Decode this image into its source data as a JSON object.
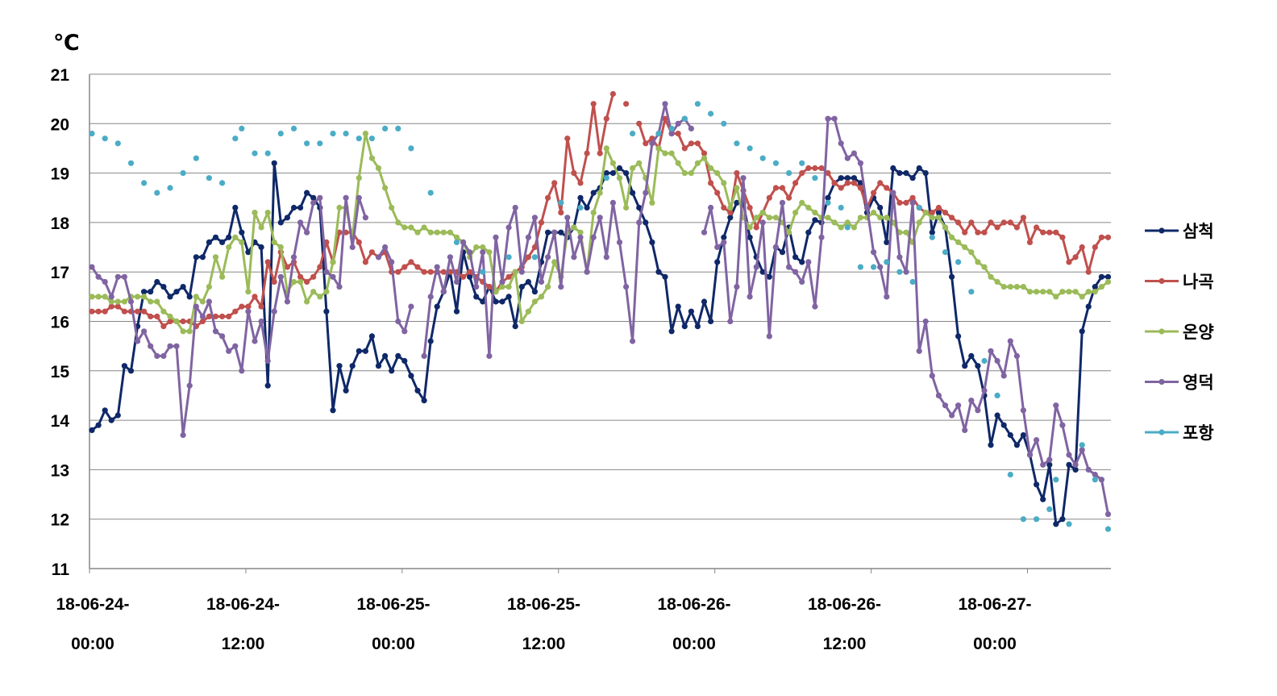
{
  "chart_data": {
    "type": "line",
    "title": "",
    "unit_label": "℃",
    "xlabel": "",
    "ylabel": "℃",
    "ylim": [
      11,
      21
    ],
    "yticks": [
      "11",
      "12",
      "13",
      "14",
      "15",
      "16",
      "17",
      "18",
      "19",
      "20",
      "21"
    ],
    "grid": true,
    "legend_position": "right",
    "x_step_hours": 0.5,
    "x_start": "18-06-24 00:00",
    "x_tick_labels": [
      [
        "18-06-24-",
        "00:00"
      ],
      [
        "18-06-24-",
        "12:00"
      ],
      [
        "18-06-25-",
        "00:00"
      ],
      [
        "18-06-25-",
        "12:00"
      ],
      [
        "18-06-26-",
        "00:00"
      ],
      [
        "18-06-26-",
        "12:00"
      ],
      [
        "18-06-27-",
        "00:00"
      ]
    ],
    "series": [
      {
        "name": "삼척",
        "color": "#0f2868",
        "line": true,
        "values": [
          13.8,
          13.9,
          14.2,
          14.0,
          14.1,
          15.1,
          15.0,
          15.9,
          16.6,
          16.6,
          16.8,
          16.7,
          16.5,
          16.6,
          16.7,
          16.5,
          17.3,
          17.3,
          17.6,
          17.7,
          17.6,
          17.7,
          18.3,
          17.8,
          17.4,
          17.6,
          17.5,
          14.7,
          19.2,
          18.0,
          18.1,
          18.3,
          18.3,
          18.6,
          18.5,
          18.3,
          16.2,
          14.2,
          15.1,
          14.6,
          15.1,
          15.4,
          15.4,
          15.7,
          15.1,
          15.3,
          15.0,
          15.3,
          15.2,
          14.9,
          14.6,
          14.4,
          15.6,
          16.3,
          16.6,
          17.0,
          16.2,
          17.4,
          16.9,
          16.5,
          16.4,
          16.7,
          16.4,
          16.4,
          16.5,
          15.9,
          16.7,
          16.8,
          16.6,
          17.2,
          17.8,
          17.8,
          17.8,
          17.7,
          17.9,
          18.5,
          18.3,
          18.6,
          18.7,
          19.0,
          19.0,
          19.1,
          19.0,
          18.6,
          18.3,
          18.0,
          17.6,
          17.0,
          16.9,
          15.8,
          16.3,
          15.9,
          16.2,
          15.9,
          16.4,
          16.0,
          17.2,
          17.7,
          18.1,
          18.4,
          18.4,
          17.7,
          17.3,
          17.0,
          16.9,
          17.5,
          17.4,
          17.9,
          17.3,
          17.2,
          17.8,
          18.05,
          18.0,
          18.5,
          18.8,
          18.9,
          18.9,
          18.9,
          18.8,
          18.2,
          18.5,
          18.3,
          17.6,
          19.1,
          19.0,
          19.0,
          18.9,
          19.1,
          19.0,
          17.8,
          18.2,
          17.9,
          16.9,
          15.7,
          15.1,
          15.3,
          15.1,
          14.5,
          13.5,
          14.1,
          13.9,
          13.7,
          13.5,
          13.7,
          13.3,
          12.7,
          12.4,
          13.1,
          11.9,
          12.0,
          13.1,
          13.0,
          15.8,
          16.3,
          16.7,
          16.9,
          16.9
        ]
      },
      {
        "name": "나곡",
        "color": "#c0504d",
        "line": true,
        "values": [
          16.2,
          16.2,
          16.2,
          16.3,
          16.3,
          16.2,
          16.2,
          16.2,
          16.2,
          16.1,
          16.1,
          15.9,
          16.0,
          16.0,
          16.0,
          16.0,
          15.9,
          16.0,
          16.1,
          16.1,
          16.1,
          16.1,
          16.2,
          16.3,
          16.3,
          16.5,
          16.3,
          17.2,
          16.8,
          17.4,
          17.1,
          17.2,
          16.9,
          16.8,
          16.9,
          17.1,
          17.6,
          17.2,
          17.8,
          17.8,
          17.8,
          17.6,
          17.2,
          17.4,
          17.3,
          17.4,
          17.0,
          17.0,
          17.1,
          17.2,
          17.1,
          17.0,
          17.0,
          17.0,
          17.0,
          17.0,
          17.0,
          16.9,
          17.0,
          16.9,
          16.8,
          16.7,
          16.6,
          16.8,
          16.9,
          17.0,
          17.1,
          17.3,
          17.5,
          18.0,
          18.5,
          18.8,
          18.2,
          19.7,
          19.0,
          18.8,
          19.4,
          20.4,
          19.4,
          20.1,
          20.6,
          null,
          20.4,
          null,
          20.0,
          19.6,
          19.7,
          19.5,
          20.1,
          19.8,
          19.8,
          19.5,
          19.6,
          19.6,
          19.4,
          18.8,
          18.6,
          18.3,
          18.2,
          19.0,
          18.65,
          18.3,
          17.9,
          18.2,
          18.5,
          18.7,
          18.7,
          18.5,
          18.8,
          19.0,
          19.1,
          19.1,
          19.1,
          19.0,
          18.8,
          18.7,
          18.8,
          18.8,
          18.7,
          18.3,
          18.6,
          18.8,
          18.7,
          18.6,
          18.4,
          18.4,
          18.5,
          18.3,
          18.2,
          18.2,
          18.3,
          18.2,
          18.1,
          18.0,
          17.8,
          18.0,
          17.8,
          17.8,
          18.0,
          17.9,
          18.0,
          18.0,
          17.9,
          18.1,
          17.6,
          17.9,
          17.8,
          17.8,
          17.8,
          17.7,
          17.2,
          17.3,
          17.5,
          17.0,
          17.5,
          17.7,
          17.7
        ]
      },
      {
        "name": "온양",
        "color": "#9bbb59",
        "line": true,
        "values": [
          16.5,
          16.5,
          16.5,
          16.4,
          16.4,
          16.4,
          16.5,
          16.5,
          16.5,
          16.4,
          16.4,
          16.2,
          16.1,
          16.0,
          15.8,
          15.8,
          16.5,
          16.4,
          16.7,
          17.3,
          16.9,
          17.5,
          17.7,
          17.6,
          16.6,
          18.2,
          17.9,
          18.2,
          17.6,
          17.5,
          16.6,
          16.8,
          16.8,
          16.4,
          16.6,
          16.5,
          16.6,
          17.2,
          18.3,
          18.3,
          17.7,
          18.9,
          19.8,
          19.3,
          19.1,
          18.7,
          18.3,
          18.0,
          17.9,
          17.9,
          17.8,
          17.9,
          17.8,
          17.8,
          17.8,
          17.8,
          17.7,
          17.6,
          17.3,
          17.5,
          17.5,
          17.4,
          16.6,
          16.7,
          16.7,
          17.0,
          16.0,
          16.2,
          16.4,
          16.5,
          16.7,
          17.2,
          16.9,
          17.8,
          17.9,
          17.8,
          17.0,
          18.2,
          18.6,
          19.5,
          19.2,
          18.9,
          18.3,
          19.1,
          19.2,
          18.9,
          18.4,
          19.5,
          19.4,
          19.4,
          19.2,
          19.0,
          19.0,
          19.2,
          19.3,
          19.1,
          19.0,
          18.8,
          18.3,
          18.7,
          18.1,
          17.9,
          18.1,
          18.2,
          18.1,
          18.1,
          18.0,
          17.8,
          18.2,
          18.4,
          18.3,
          18.2,
          18.1,
          18.1,
          18.0,
          17.9,
          18.0,
          17.9,
          18.1,
          18.1,
          18.2,
          18.1,
          18.1,
          18.0,
          17.8,
          17.8,
          17.6,
          18.0,
          18.2,
          18.1,
          18.1,
          17.9,
          17.7,
          17.6,
          17.5,
          17.4,
          17.2,
          17.1,
          16.9,
          16.8,
          16.7,
          16.7,
          16.7,
          16.7,
          16.6,
          16.6,
          16.6,
          16.6,
          16.5,
          16.6,
          16.6,
          16.6,
          16.5,
          16.6,
          16.6,
          16.7,
          16.8
        ]
      },
      {
        "name": "영덕",
        "color": "#8064a2",
        "line": true,
        "values": [
          17.1,
          16.9,
          16.8,
          16.5,
          16.9,
          16.9,
          16.4,
          15.6,
          15.8,
          15.5,
          15.3,
          15.3,
          15.5,
          15.5,
          13.7,
          14.7,
          16.3,
          16.1,
          16.4,
          15.8,
          15.7,
          15.4,
          15.5,
          15.0,
          16.2,
          15.6,
          16.0,
          15.2,
          16.2,
          16.9,
          16.4,
          17.3,
          18.0,
          17.8,
          18.4,
          18.5,
          17.0,
          16.9,
          16.7,
          18.5,
          17.5,
          18.5,
          18.1,
          null,
          17.3,
          17.5,
          17.2,
          16.0,
          15.8,
          16.3,
          null,
          15.3,
          16.5,
          17.1,
          16.6,
          17.3,
          16.8,
          17.6,
          17.4,
          16.7,
          17.4,
          15.3,
          17.7,
          16.8,
          17.9,
          18.3,
          17.0,
          17.7,
          18.1,
          16.8,
          17.3,
          17.8,
          16.7,
          18.1,
          17.3,
          17.7,
          17.0,
          17.7,
          18.1,
          17.3,
          18.4,
          17.6,
          16.7,
          15.6,
          18.0,
          18.6,
          19.6,
          19.8,
          20.4,
          19.8,
          20.0,
          20.1,
          19.9,
          null,
          17.8,
          18.3,
          17.5,
          17.6,
          16.0,
          16.7,
          18.9,
          16.5,
          17.1,
          18.0,
          15.7,
          17.5,
          18.4,
          17.1,
          17.0,
          16.8,
          17.2,
          16.3,
          17.7,
          20.1,
          20.1,
          19.6,
          19.3,
          19.4,
          19.2,
          18.3,
          17.4,
          17.1,
          16.5,
          18.6,
          17.3,
          17.0,
          18.4,
          15.4,
          16.0,
          14.9,
          14.5,
          14.3,
          14.1,
          14.3,
          13.8,
          14.4,
          14.2,
          14.6,
          15.4,
          15.2,
          14.9,
          15.6,
          15.3,
          14.2,
          13.3,
          13.6,
          13.1,
          13.2,
          14.3,
          13.9,
          13.3,
          13.1,
          13.4,
          13.0,
          12.9,
          12.8,
          12.1
        ]
      },
      {
        "name": "포항",
        "color": "#4bacc6",
        "line": false,
        "points_hours": [
          [
            0,
            19.8
          ],
          [
            1,
            19.7
          ],
          [
            2,
            19.6
          ],
          [
            3,
            19.2
          ],
          [
            4,
            18.8
          ],
          [
            5,
            18.6
          ],
          [
            6,
            18.7
          ],
          [
            7,
            19.0
          ],
          [
            8,
            19.3
          ],
          [
            9,
            18.9
          ],
          [
            10,
            18.8
          ],
          [
            11,
            19.7
          ],
          [
            11.5,
            19.9
          ],
          [
            12.5,
            19.4
          ],
          [
            13.5,
            19.4
          ],
          [
            14.5,
            19.8
          ],
          [
            15.5,
            19.9
          ],
          [
            16.5,
            19.6
          ],
          [
            17.5,
            19.6
          ],
          [
            18.5,
            19.8
          ],
          [
            19.5,
            19.8
          ],
          [
            20.5,
            19.7
          ],
          [
            21.5,
            19.7
          ],
          [
            22.5,
            19.9
          ],
          [
            23.5,
            19.9
          ],
          [
            24.5,
            19.5
          ],
          [
            26,
            18.6
          ],
          [
            28,
            17.6
          ],
          [
            30,
            17.0
          ],
          [
            32,
            17.3
          ],
          [
            34,
            17.3
          ],
          [
            36,
            18.4
          ],
          [
            37.5,
            18.3
          ],
          [
            39.5,
            18.9
          ],
          [
            41.5,
            19.8
          ],
          [
            43.5,
            19.8
          ],
          [
            44.5,
            19.9
          ],
          [
            45.5,
            20.1
          ],
          [
            46.5,
            20.4
          ],
          [
            47.5,
            20.2
          ],
          [
            48.5,
            20.0
          ],
          [
            49.5,
            19.6
          ],
          [
            50.5,
            19.5
          ],
          [
            51.5,
            19.3
          ],
          [
            52.5,
            19.2
          ],
          [
            53.5,
            19.0
          ],
          [
            54.5,
            19.2
          ],
          [
            55.5,
            18.9
          ],
          [
            56.5,
            18.4
          ],
          [
            57.5,
            18.3
          ],
          [
            58,
            17.9
          ],
          [
            59,
            17.1
          ],
          [
            60,
            17.1
          ],
          [
            61,
            17.2
          ],
          [
            62,
            17.0
          ],
          [
            63,
            16.8
          ],
          [
            63.5,
            18.3
          ],
          [
            64.5,
            17.7
          ],
          [
            65.5,
            17.4
          ],
          [
            66.5,
            17.2
          ],
          [
            67.5,
            16.6
          ],
          [
            68.5,
            15.2
          ],
          [
            69.5,
            14.5
          ],
          [
            70.5,
            12.9
          ],
          [
            71.5,
            12.0
          ],
          [
            72.5,
            12.0
          ],
          [
            73.5,
            12.2
          ],
          [
            74,
            12.8
          ],
          [
            75,
            11.9
          ],
          [
            76,
            13.5
          ],
          [
            77,
            12.8
          ],
          [
            78,
            11.8
          ]
        ]
      }
    ]
  }
}
